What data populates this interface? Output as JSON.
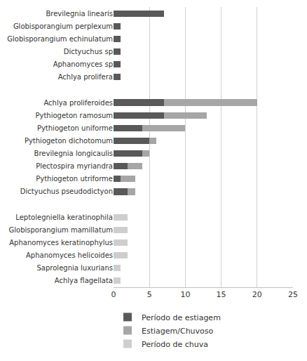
{
  "chart_data": {
    "type": "bar",
    "orientation": "horizontal",
    "stacked": true,
    "categories": [
      "Brevilegnia linearis",
      "Globisporangium perplexum",
      "Globisporangium echinulatum",
      "Dictyuchus sp",
      "Aphanomyces sp",
      "Achlya prolifera",
      null,
      "Achlya proliferoides",
      "Pythiogeton ramosum",
      "Pythiogeton uniforme",
      "Pythiogeton dichotomum",
      "Brevilegnia longicaulis",
      "Plectospira myriandra",
      "Pythiogeton utriforme",
      "Dictyuchus pseudodictyon",
      null,
      "Leptolegniella keratinophila",
      "Globisporangium mamillatum",
      "Aphanomyces keratinophylus",
      "Aphanomyces helicoides",
      "Saprolegnia luxurians",
      "Achlya flagellata"
    ],
    "series": [
      {
        "name": "Período de estiagem",
        "color": "#595959",
        "values": [
          7,
          1,
          1,
          1,
          1,
          1,
          0,
          7,
          7,
          4,
          5,
          4,
          2,
          1,
          2,
          0,
          0,
          0,
          0,
          0,
          0,
          0
        ]
      },
      {
        "name": "Estiagem/Chuvoso",
        "color": "#A6A6A6",
        "values": [
          0,
          0,
          0,
          0,
          0,
          0,
          0,
          13,
          6,
          6,
          1,
          1,
          2,
          2,
          1,
          0,
          0,
          0,
          0,
          0,
          0,
          0
        ]
      },
      {
        "name": "Período de chuva",
        "color": "#CECECE",
        "values": [
          0,
          0,
          0,
          0,
          0,
          0,
          0,
          0,
          0,
          0,
          0,
          0,
          0,
          0,
          0,
          0,
          2,
          2,
          2,
          2,
          1,
          1
        ]
      }
    ],
    "xlim": [
      0,
      25
    ],
    "xticks": [
      0,
      5,
      10,
      15,
      20,
      25
    ],
    "grid": true,
    "legend": "bottom"
  }
}
